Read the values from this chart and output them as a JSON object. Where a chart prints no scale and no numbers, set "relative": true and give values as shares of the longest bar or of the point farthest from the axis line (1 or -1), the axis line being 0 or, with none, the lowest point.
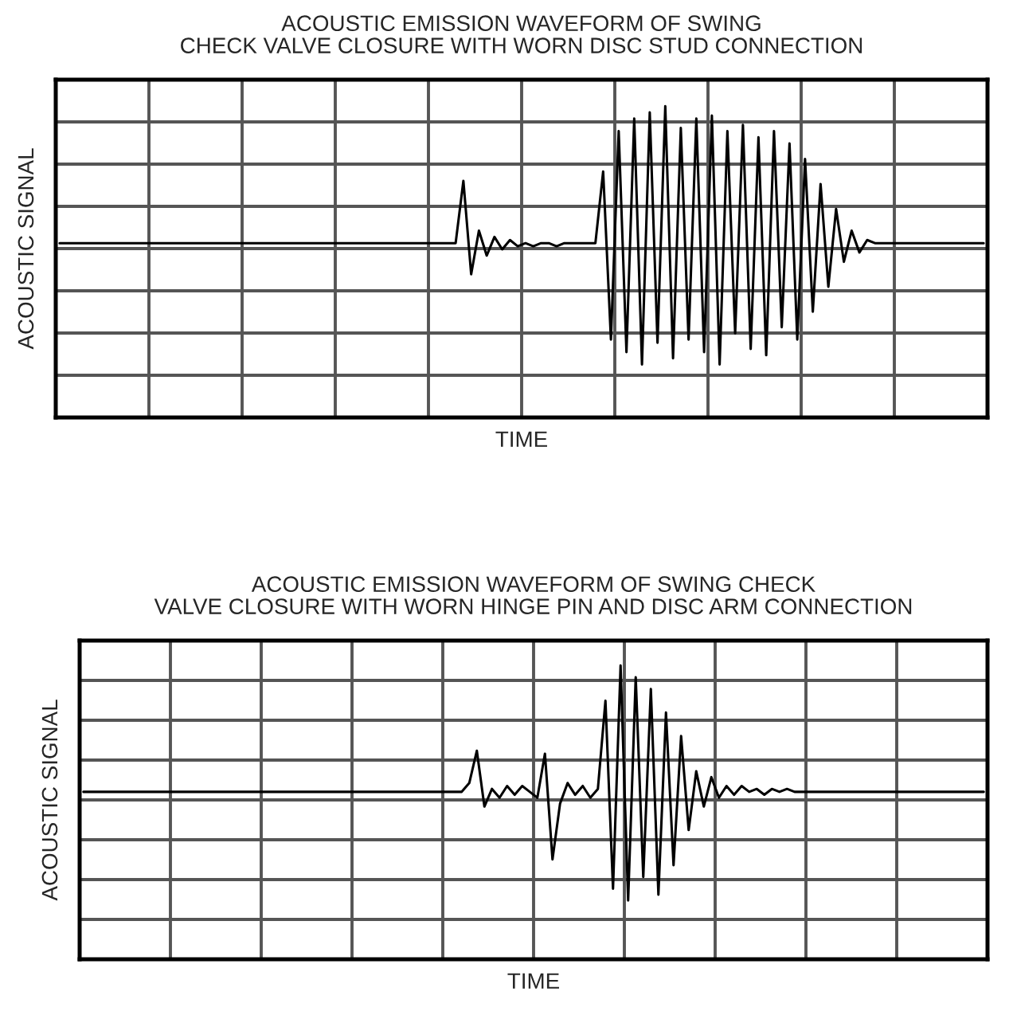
{
  "chart_data": [
    {
      "type": "line",
      "title": "ACOUSTIC EMISSION WAVEFORM OF SWING\nCHECK VALVE CLOSURE WITH WORN DISC STUD CONNECTION",
      "xlabel": "TIME",
      "ylabel": "ACOUSTIC SIGNAL",
      "relative": true,
      "grid": true,
      "tick_labels": false,
      "categories": [
        null,
        null,
        null,
        null,
        null,
        null,
        null,
        null,
        null,
        null,
        null,
        null,
        null,
        null,
        null,
        null,
        null,
        null,
        null,
        null,
        null,
        null,
        null,
        null,
        null,
        null,
        null,
        null,
        null,
        null,
        null,
        null,
        null,
        null,
        null,
        null,
        null,
        null,
        null,
        null,
        null,
        null,
        null,
        null,
        null,
        null,
        null,
        null,
        null,
        null,
        null,
        null,
        null,
        null,
        null,
        null,
        null,
        null,
        null,
        null,
        null,
        null,
        null,
        null,
        null,
        null,
        null,
        null,
        null,
        null,
        null,
        null,
        null,
        null,
        null,
        null,
        null,
        null,
        null,
        null,
        null,
        null,
        null,
        null,
        null,
        null,
        null,
        null,
        null,
        null,
        null,
        null,
        null,
        null,
        null,
        null,
        null,
        null,
        null,
        null,
        null,
        null,
        null,
        null,
        null,
        null,
        null,
        null,
        null,
        null,
        null,
        null,
        null,
        null,
        null,
        null,
        null,
        null,
        null,
        null
      ],
      "series": [
        {
          "color": "#000000",
          "values": [
            0.56,
            0.56,
            0.56,
            0.56,
            0.56,
            0.56,
            0.56,
            0.56,
            0.56,
            0.56,
            0.56,
            0.56,
            0.56,
            0.56,
            0.56,
            0.56,
            0.56,
            0.56,
            0.56,
            0.56,
            0.56,
            0.56,
            0.56,
            0.56,
            0.56,
            0.56,
            0.56,
            0.56,
            0.56,
            0.56,
            0.56,
            0.56,
            0.56,
            0.56,
            0.56,
            0.56,
            0.56,
            0.56,
            0.56,
            0.56,
            0.56,
            0.56,
            0.56,
            0.56,
            0.56,
            0.56,
            0.56,
            0.56,
            0.56,
            0.56,
            0.56,
            0.56,
            0.76,
            0.46,
            0.6,
            0.52,
            0.58,
            0.54,
            0.57,
            0.55,
            0.56,
            0.55,
            0.56,
            0.56,
            0.55,
            0.56,
            0.56,
            0.56,
            0.56,
            0.56,
            0.79,
            0.25,
            0.92,
            0.21,
            0.96,
            0.17,
            0.98,
            0.24,
            1.0,
            0.19,
            0.93,
            0.25,
            0.96,
            0.21,
            0.97,
            0.17,
            0.92,
            0.27,
            0.94,
            0.22,
            0.9,
            0.2,
            0.92,
            0.29,
            0.88,
            0.25,
            0.83,
            0.34,
            0.75,
            0.42,
            0.67,
            0.5,
            0.6,
            0.53,
            0.57,
            0.56,
            0.56,
            0.56,
            0.56,
            0.56,
            0.56,
            0.56,
            0.56,
            0.56,
            0.56,
            0.56,
            0.56,
            0.56,
            0.56,
            0.56
          ]
        }
      ]
    },
    {
      "type": "line",
      "title": "ACOUSTIC EMISSION WAVEFORM OF SWING CHECK\nVALVE CLOSURE WITH WORN HINGE PIN AND DISC ARM CONNECTION",
      "xlabel": "TIME",
      "ylabel": "ACOUSTIC SIGNAL",
      "relative": true,
      "grid": true,
      "tick_labels": false,
      "categories": [
        null,
        null,
        null,
        null,
        null,
        null,
        null,
        null,
        null,
        null,
        null,
        null,
        null,
        null,
        null,
        null,
        null,
        null,
        null,
        null,
        null,
        null,
        null,
        null,
        null,
        null,
        null,
        null,
        null,
        null,
        null,
        null,
        null,
        null,
        null,
        null,
        null,
        null,
        null,
        null,
        null,
        null,
        null,
        null,
        null,
        null,
        null,
        null,
        null,
        null,
        null,
        null,
        null,
        null,
        null,
        null,
        null,
        null,
        null,
        null,
        null,
        null,
        null,
        null,
        null,
        null,
        null,
        null,
        null,
        null,
        null,
        null,
        null,
        null,
        null,
        null,
        null,
        null,
        null,
        null,
        null,
        null,
        null,
        null,
        null,
        null,
        null,
        null,
        null,
        null,
        null,
        null,
        null,
        null,
        null,
        null,
        null,
        null,
        null,
        null,
        null,
        null,
        null,
        null,
        null,
        null,
        null,
        null,
        null,
        null,
        null,
        null,
        null,
        null,
        null,
        null,
        null,
        null,
        null,
        null
      ],
      "series": [
        {
          "color": "#000000",
          "values": [
            0.57,
            0.57,
            0.57,
            0.57,
            0.57,
            0.57,
            0.57,
            0.57,
            0.57,
            0.57,
            0.57,
            0.57,
            0.57,
            0.57,
            0.57,
            0.57,
            0.57,
            0.57,
            0.57,
            0.57,
            0.57,
            0.57,
            0.57,
            0.57,
            0.57,
            0.57,
            0.57,
            0.57,
            0.57,
            0.57,
            0.57,
            0.57,
            0.57,
            0.57,
            0.57,
            0.57,
            0.57,
            0.57,
            0.57,
            0.57,
            0.57,
            0.57,
            0.57,
            0.57,
            0.57,
            0.57,
            0.57,
            0.57,
            0.57,
            0.57,
            0.57,
            0.6,
            0.71,
            0.52,
            0.58,
            0.55,
            0.59,
            0.56,
            0.59,
            0.57,
            0.55,
            0.7,
            0.34,
            0.53,
            0.6,
            0.56,
            0.59,
            0.55,
            0.58,
            0.88,
            0.24,
            1.0,
            0.2,
            0.96,
            0.28,
            0.92,
            0.22,
            0.84,
            0.32,
            0.76,
            0.44,
            0.64,
            0.52,
            0.62,
            0.55,
            0.59,
            0.56,
            0.59,
            0.57,
            0.58,
            0.56,
            0.58,
            0.57,
            0.58,
            0.57,
            0.57,
            0.57,
            0.57,
            0.57,
            0.57,
            0.57,
            0.57,
            0.57,
            0.57,
            0.57,
            0.57,
            0.57,
            0.57,
            0.57,
            0.57,
            0.57,
            0.57,
            0.57,
            0.57,
            0.57,
            0.57,
            0.57,
            0.57,
            0.57,
            0.57
          ]
        }
      ]
    }
  ]
}
